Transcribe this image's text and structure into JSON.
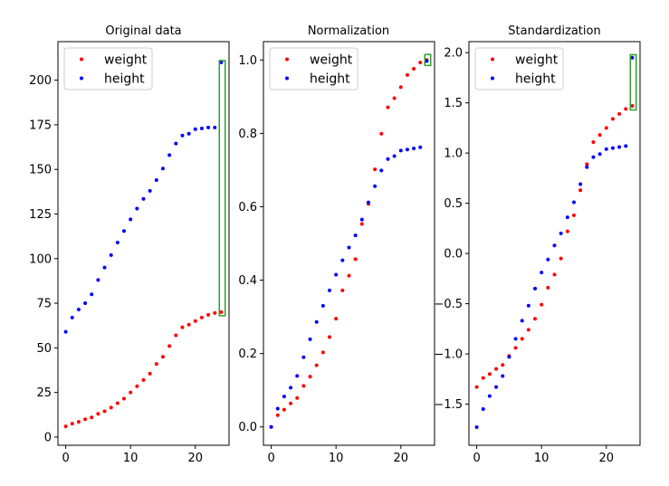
{
  "chart_data": [
    {
      "type": "scatter",
      "title": "Original data",
      "xlabel": "",
      "ylabel": "",
      "xlim": [
        -1.2,
        25.2
      ],
      "ylim": [
        -4.6,
        221.6
      ],
      "xticks": [
        0,
        10,
        20
      ],
      "yticks": [
        0,
        25,
        50,
        75,
        100,
        125,
        150,
        175,
        200
      ],
      "ytick_labels": [
        "0",
        "25",
        "50",
        "75",
        "100",
        "125",
        "150",
        "175",
        "200"
      ],
      "legend": "upper left",
      "series": [
        {
          "name": "weight",
          "color": "#ff0000",
          "x": [
            0,
            1,
            2,
            3,
            4,
            5,
            6,
            7,
            8,
            9,
            10,
            11,
            12,
            13,
            14,
            15,
            16,
            17,
            18,
            19,
            20,
            21,
            22,
            23,
            24
          ],
          "y": [
            6,
            7.5,
            8.5,
            10,
            11,
            13,
            14.5,
            16.5,
            19,
            21.5,
            25,
            28.5,
            32,
            35.5,
            41,
            45,
            51,
            57,
            61.5,
            63,
            65,
            67,
            68.5,
            69.5,
            70
          ]
        },
        {
          "name": "height",
          "color": "#0000ff",
          "x": [
            0,
            1,
            2,
            3,
            4,
            5,
            6,
            7,
            8,
            9,
            10,
            11,
            12,
            13,
            14,
            15,
            16,
            17,
            18,
            19,
            20,
            21,
            22,
            23,
            24
          ],
          "y": [
            59,
            67,
            71.5,
            75,
            80,
            88,
            95,
            102,
            109,
            115.5,
            122,
            128,
            133.5,
            138,
            144,
            150.5,
            158,
            164.5,
            169,
            170,
            172.5,
            173,
            173.5,
            173.5,
            210
          ]
        }
      ],
      "highlight_box": {
        "x": [
          23.7,
          24.6
        ],
        "y": [
          68,
          211
        ]
      }
    },
    {
      "type": "scatter",
      "title": "Normalization",
      "xlabel": "",
      "ylabel": "",
      "xlim": [
        -1.2,
        25.2
      ],
      "ylim": [
        -0.05,
        1.05
      ],
      "xticks": [
        0,
        10,
        20
      ],
      "yticks": [
        0.0,
        0.2,
        0.4,
        0.6,
        0.8,
        1.0
      ],
      "ytick_labels": [
        "0.0",
        "0.2",
        "0.4",
        "0.6",
        "0.8",
        "1.0"
      ],
      "legend": "upper left",
      "series": [
        {
          "name": "weight",
          "color": "#ff0000",
          "x": [
            0,
            1,
            2,
            3,
            4,
            5,
            6,
            7,
            8,
            9,
            10,
            11,
            12,
            13,
            14,
            15,
            16,
            17,
            18,
            19,
            20,
            21,
            22,
            23,
            24
          ],
          "y": [
            0,
            0.032,
            0.047,
            0.064,
            0.079,
            0.112,
            0.137,
            0.168,
            0.203,
            0.245,
            0.295,
            0.372,
            0.412,
            0.457,
            0.553,
            0.608,
            0.702,
            0.799,
            0.871,
            0.896,
            0.926,
            0.959,
            0.976,
            0.993,
            1.0
          ]
        },
        {
          "name": "height",
          "color": "#0000ff",
          "x": [
            0,
            1,
            2,
            3,
            4,
            5,
            6,
            7,
            8,
            9,
            10,
            11,
            12,
            13,
            14,
            15,
            16,
            17,
            18,
            19,
            20,
            21,
            22,
            23,
            24
          ],
          "y": [
            0,
            0.05,
            0.083,
            0.107,
            0.139,
            0.19,
            0.239,
            0.286,
            0.33,
            0.372,
            0.415,
            0.454,
            0.489,
            0.522,
            0.565,
            0.612,
            0.656,
            0.699,
            0.73,
            0.738,
            0.753,
            0.756,
            0.759,
            0.762,
            0.997
          ]
        }
      ],
      "highlight_box": {
        "x": [
          23.7,
          24.6
        ],
        "y": [
          0.985,
          1.015
        ]
      }
    },
    {
      "type": "scatter",
      "title": "Standardization",
      "xlabel": "",
      "ylabel": "",
      "xlim": [
        -1.2,
        25.2
      ],
      "ylim": [
        -1.91,
        2.11
      ],
      "xticks": [
        0,
        10,
        20
      ],
      "yticks": [
        -1.5,
        -1.0,
        -0.5,
        0.0,
        0.5,
        1.0,
        1.5,
        2.0
      ],
      "ytick_labels": [
        "−1.5",
        "−1.0",
        "−0.5",
        "0.0",
        "0.5",
        "1.0",
        "1.5",
        "2.0"
      ],
      "legend": "upper left",
      "series": [
        {
          "name": "weight",
          "color": "#ff0000",
          "x": [
            0,
            1,
            2,
            3,
            4,
            5,
            6,
            7,
            8,
            9,
            10,
            11,
            12,
            13,
            14,
            15,
            16,
            17,
            18,
            19,
            20,
            21,
            22,
            23,
            24
          ],
          "y": [
            -1.33,
            -1.24,
            -1.2,
            -1.15,
            -1.11,
            -1.02,
            -0.94,
            -0.85,
            -0.76,
            -0.65,
            -0.51,
            -0.34,
            -0.21,
            -0.05,
            0.22,
            0.38,
            0.63,
            0.89,
            1.11,
            1.18,
            1.25,
            1.34,
            1.39,
            1.44,
            1.47
          ]
        },
        {
          "name": "height",
          "color": "#0000ff",
          "x": [
            0,
            1,
            2,
            3,
            4,
            5,
            6,
            7,
            8,
            9,
            10,
            11,
            12,
            13,
            14,
            15,
            16,
            17,
            18,
            19,
            20,
            21,
            22,
            23,
            24
          ],
          "y": [
            -1.73,
            -1.55,
            -1.42,
            -1.33,
            -1.22,
            -1.03,
            -0.85,
            -0.67,
            -0.52,
            -0.35,
            -0.19,
            -0.06,
            0.08,
            0.2,
            0.36,
            0.51,
            0.69,
            0.86,
            0.96,
            0.99,
            1.04,
            1.05,
            1.06,
            1.07,
            1.95
          ]
        }
      ],
      "highlight_box": {
        "x": [
          23.7,
          24.6
        ],
        "y": [
          1.43,
          1.98
        ]
      }
    }
  ]
}
